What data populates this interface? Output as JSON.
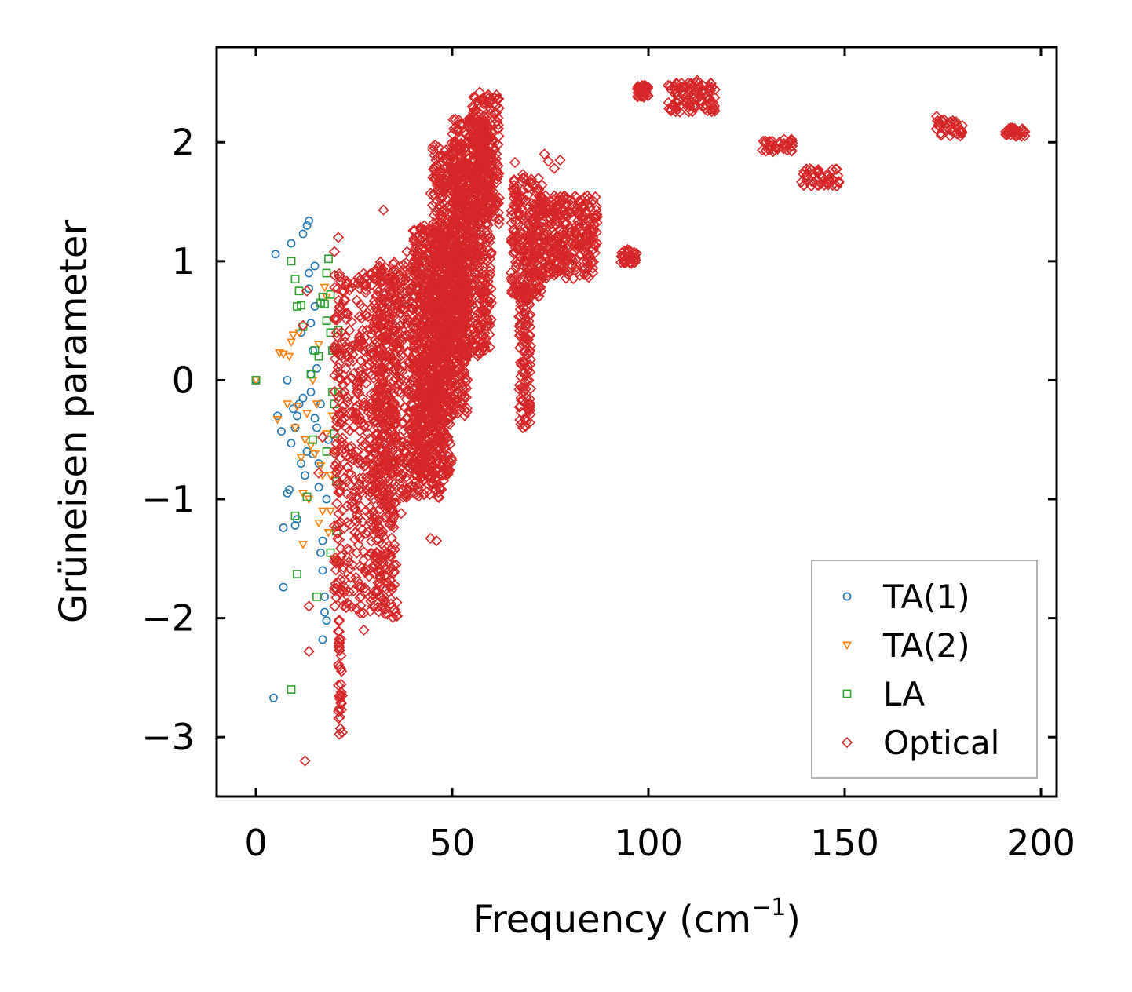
{
  "chart_data": {
    "type": "scatter",
    "title": "",
    "xlabel": "Frequency (cm",
    "xlabel_sup": "−1",
    "xlabel_close": ")",
    "ylabel": "Grüneisen parameter",
    "xlim": [
      -10,
      204
    ],
    "ylim": [
      -3.5,
      2.8
    ],
    "xticks": [
      0,
      50,
      100,
      150,
      200
    ],
    "xtick_labels": [
      "0",
      "50",
      "100",
      "150",
      "200"
    ],
    "yticks": [
      -3,
      -2,
      -1,
      0,
      1,
      2
    ],
    "ytick_labels": [
      "−3",
      "−2",
      "−1",
      "0",
      "1",
      "2"
    ],
    "grid": false,
    "legend_position": "bottom-right",
    "series": [
      {
        "name": "TA(1)",
        "marker": "circle",
        "color": "#1f77b4",
        "points": [
          [
            0,
            0
          ],
          [
            4.5,
            -2.67
          ],
          [
            5,
            1.06
          ],
          [
            5.5,
            -0.3
          ],
          [
            6.5,
            -0.43
          ],
          [
            7,
            -1.74
          ],
          [
            7,
            -1.24
          ],
          [
            8,
            -0.95
          ],
          [
            8,
            0
          ],
          [
            8.5,
            -0.92
          ],
          [
            9,
            -0.53
          ],
          [
            9,
            1.15
          ],
          [
            9.5,
            -0.24
          ],
          [
            10,
            -0.4
          ],
          [
            10,
            -1.22
          ],
          [
            10.5,
            -1.17
          ],
          [
            10.5,
            -0.3
          ],
          [
            11,
            -0.2
          ],
          [
            11.5,
            0.4
          ],
          [
            11.5,
            -0.7
          ],
          [
            12,
            1.23
          ],
          [
            12,
            -0.15
          ],
          [
            12.5,
            -0.8
          ],
          [
            13,
            1.3
          ],
          [
            13,
            -0.6
          ],
          [
            13.5,
            1.34
          ],
          [
            13.5,
            0.9
          ],
          [
            14,
            0.48
          ],
          [
            14,
            -0.1
          ],
          [
            14.5,
            0.25
          ],
          [
            14.5,
            -0.62
          ],
          [
            15,
            0.96
          ],
          [
            15,
            0.62
          ],
          [
            15.5,
            0.1
          ],
          [
            15.5,
            -0.4
          ],
          [
            16,
            -0.9
          ],
          [
            16,
            -0.7
          ],
          [
            16.5,
            -1.45
          ],
          [
            16.5,
            -0.2
          ],
          [
            17,
            -1.6
          ],
          [
            17,
            -1.35
          ],
          [
            17,
            -2.18
          ],
          [
            17.5,
            -1.82
          ],
          [
            17.5,
            -1.95
          ],
          [
            18,
            -2.02
          ],
          [
            18,
            -1.0
          ],
          [
            18.5,
            -0.5
          ],
          [
            13.5,
            0.77
          ],
          [
            14,
            0.05
          ],
          [
            15,
            -0.32
          ]
        ]
      },
      {
        "name": "TA(2)",
        "marker": "triangle-down",
        "color": "#ff7f0e",
        "points": [
          [
            0,
            0
          ],
          [
            5.5,
            -0.33
          ],
          [
            6,
            0.23
          ],
          [
            7,
            0.22
          ],
          [
            8,
            -0.2
          ],
          [
            8.5,
            0.2
          ],
          [
            9,
            0.32
          ],
          [
            9.5,
            0.38
          ],
          [
            10,
            -0.4
          ],
          [
            10.5,
            -0.22
          ],
          [
            11,
            0.4
          ],
          [
            11.5,
            -0.65
          ],
          [
            12,
            -1.38
          ],
          [
            12,
            -0.95
          ],
          [
            12.5,
            -0.5
          ],
          [
            13,
            -0.28
          ],
          [
            13.5,
            -1.0
          ],
          [
            14,
            -0.55
          ],
          [
            14.5,
            0.0
          ],
          [
            15,
            -0.62
          ],
          [
            15.5,
            -0.2
          ],
          [
            16,
            -1.2
          ],
          [
            16,
            0.3
          ],
          [
            16.5,
            -0.72
          ],
          [
            17,
            -0.8
          ],
          [
            17,
            -1.1
          ],
          [
            17.5,
            0.78
          ],
          [
            18,
            -0.45
          ],
          [
            18.5,
            -1.28
          ],
          [
            19,
            -1.1
          ],
          [
            19,
            -0.8
          ],
          [
            19.5,
            -0.3
          ],
          [
            20,
            -1.5
          ],
          [
            20,
            -0.6
          ],
          [
            18,
            0.7
          ]
        ]
      },
      {
        "name": "LA",
        "marker": "square",
        "color": "#2ca02c",
        "points": [
          [
            0,
            0
          ],
          [
            9,
            1.0
          ],
          [
            9,
            -2.6
          ],
          [
            10,
            0.85
          ],
          [
            10,
            -1.14
          ],
          [
            10.5,
            -1.63
          ],
          [
            10.5,
            0.62
          ],
          [
            11,
            0.75
          ],
          [
            11.5,
            0.63
          ],
          [
            12,
            0.45
          ],
          [
            13,
            -0.98
          ],
          [
            14,
            0.05
          ],
          [
            14.5,
            -0.5
          ],
          [
            15,
            0.25
          ],
          [
            15.5,
            -1.82
          ],
          [
            16,
            0.2
          ],
          [
            16.5,
            0.65
          ],
          [
            17,
            0.7
          ],
          [
            17.5,
            0.64
          ],
          [
            18,
            0.9
          ],
          [
            18,
            0.5
          ],
          [
            18.5,
            1.02
          ],
          [
            19,
            0.72
          ],
          [
            19,
            0.4
          ],
          [
            19.5,
            0.25
          ],
          [
            19.5,
            -0.1
          ],
          [
            20,
            -0.2
          ],
          [
            20,
            -0.45
          ],
          [
            20.5,
            -0.85
          ],
          [
            20.5,
            -1.27
          ],
          [
            21,
            0.42
          ],
          [
            21,
            -0.1
          ],
          [
            19,
            -1.45
          ],
          [
            18,
            -0.6
          ]
        ]
      },
      {
        "name": "Optical",
        "marker": "diamond",
        "color": "#d62728",
        "dense_bands": [
          {
            "x": [
              20,
              36
            ],
            "y": [
              -2.0,
              0.9
            ]
          },
          {
            "x": [
              21,
              22
            ],
            "y": [
              -3.0,
              -2.0
            ]
          },
          {
            "x": [
              30,
              48
            ],
            "y": [
              -1.0,
              1.0
            ]
          },
          {
            "x": [
              40,
              50
            ],
            "y": [
              -0.8,
              1.3
            ]
          },
          {
            "x": [
              45,
              54
            ],
            "y": [
              -0.3,
              2.0
            ]
          },
          {
            "x": [
              50,
              60
            ],
            "y": [
              0.2,
              2.2
            ]
          },
          {
            "x": [
              55,
              62
            ],
            "y": [
              1.3,
              2.4
            ]
          },
          {
            "x": [
              65,
              73
            ],
            "y": [
              0.7,
              1.7
            ]
          },
          {
            "x": [
              67,
              70
            ],
            "y": [
              -0.4,
              0.8
            ]
          },
          {
            "x": [
              72,
              87
            ],
            "y": [
              0.85,
              1.55
            ]
          },
          {
            "x": [
              93,
              97
            ],
            "y": [
              0.98,
              1.1
            ]
          },
          {
            "x": [
              97,
              100
            ],
            "y": [
              2.38,
              2.48
            ]
          },
          {
            "x": [
              105,
              117
            ],
            "y": [
              2.25,
              2.52
            ]
          },
          {
            "x": [
              129,
              137
            ],
            "y": [
              1.92,
              2.03
            ]
          },
          {
            "x": [
              139,
              149
            ],
            "y": [
              1.63,
              1.78
            ]
          },
          {
            "x": [
              173,
              180
            ],
            "y": [
              2.05,
              2.22
            ]
          },
          {
            "x": [
              191,
              196
            ],
            "y": [
              2.05,
              2.12
            ]
          }
        ],
        "points": [
          [
            12.5,
            -3.2
          ],
          [
            13.5,
            -2.28
          ],
          [
            13.5,
            -1.9
          ],
          [
            12,
            0.46
          ],
          [
            13,
            0.75
          ],
          [
            16,
            -0.78
          ],
          [
            17,
            -0.48
          ],
          [
            21,
            1.2
          ],
          [
            20,
            1.08
          ],
          [
            20.5,
            -1.75
          ],
          [
            22,
            -2.65
          ],
          [
            22,
            -2.96
          ],
          [
            29,
            -1.82
          ],
          [
            33,
            -1.58
          ],
          [
            27.5,
            -2.1
          ],
          [
            32.5,
            1.43
          ],
          [
            40.5,
            -0.86
          ],
          [
            44.5,
            -1.33
          ],
          [
            46,
            -1.35
          ],
          [
            44.5,
            1.57
          ],
          [
            45,
            1.47
          ],
          [
            41,
            1.2
          ],
          [
            38.5,
            1.08
          ],
          [
            37,
            -1.12
          ],
          [
            56,
            0.47
          ],
          [
            57,
            0.45
          ],
          [
            66,
            1.83
          ],
          [
            68,
            1.73
          ],
          [
            73.5,
            1.9
          ],
          [
            74.5,
            1.84
          ],
          [
            76,
            1.78
          ],
          [
            77.5,
            1.85
          ],
          [
            68,
            -0.4
          ],
          [
            67.5,
            -0.37
          ],
          [
            60,
            2.35
          ],
          [
            57,
            2.42
          ],
          [
            69,
            0.7
          ],
          [
            72,
            1.6
          ],
          [
            26,
            -1.3
          ],
          [
            24.5,
            -1.55
          ]
        ]
      }
    ]
  }
}
